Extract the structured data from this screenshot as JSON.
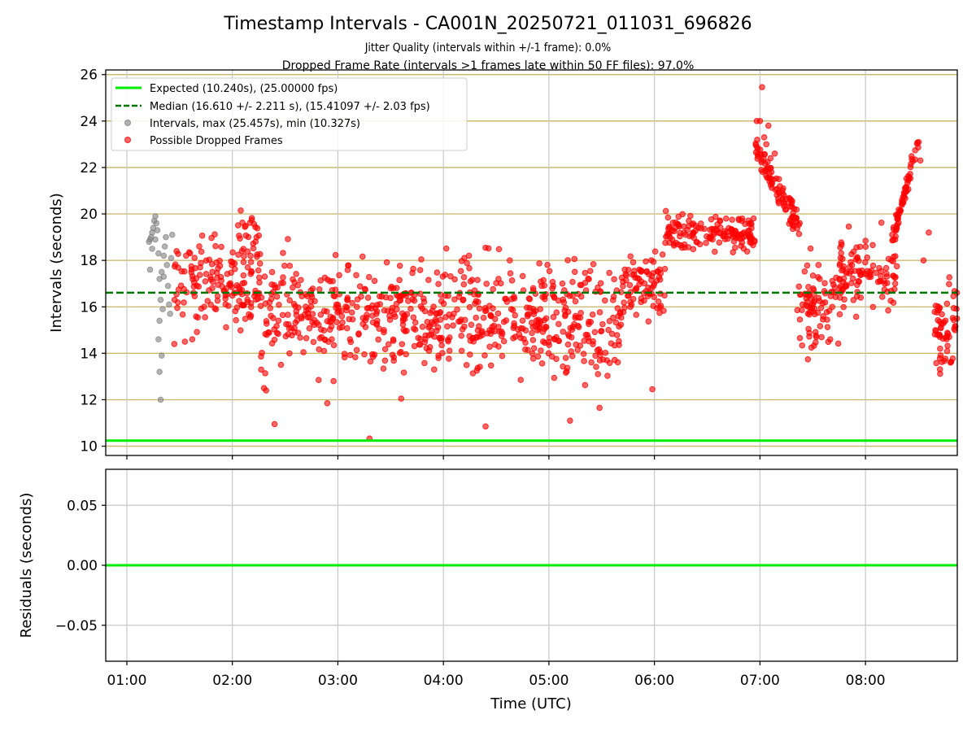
{
  "figure": {
    "title": "Timestamp Intervals - CA001N_20250721_011031_696826",
    "subtitle_1": "Jitter Quality (intervals within +/-1 frame): 0.0%",
    "subtitle_2": "Dropped Frame Rate (intervals >1 frames late within 50 FF files): 97.0%"
  },
  "colors": {
    "expected": "#00ee00",
    "median": "#007700",
    "normal_points": "#808080",
    "dropped_points": "#ff0000",
    "gold_grid": "#c8b464",
    "grey_grid": "#c8c8c8"
  },
  "chart_data": [
    {
      "type": "scatter",
      "ylabel": "Intervals (seconds)",
      "ylim": [
        9.6,
        26.2
      ],
      "yticks": [
        10,
        12,
        14,
        16,
        18,
        20,
        22,
        24,
        26
      ],
      "xlim_hours": [
        0.8,
        8.87
      ],
      "xticks": [
        "01:00",
        "02:00",
        "03:00",
        "04:00",
        "05:00",
        "06:00",
        "07:00",
        "08:00"
      ],
      "grid": true,
      "legend_position": "upper-left",
      "expected": {
        "label": "Expected (10.240s), (25.00000 fps)",
        "value": 10.24
      },
      "median": {
        "label": "Median (16.610 +/- 2.211 s), (15.41097 +/- 2.03 fps)",
        "value": 16.61
      },
      "intervals_label": "Intervals, max (25.457s), min (10.327s)",
      "dropped_label": "Possible Dropped Frames",
      "normal_points": [
        [
          1.21,
          18.8
        ],
        [
          1.22,
          18.9
        ],
        [
          1.23,
          19.0
        ],
        [
          1.24,
          19.2
        ],
        [
          1.25,
          19.4
        ],
        [
          1.26,
          19.7
        ],
        [
          1.27,
          19.9
        ],
        [
          1.28,
          19.6
        ],
        [
          1.29,
          19.3
        ],
        [
          1.24,
          18.5
        ],
        [
          1.22,
          17.6
        ],
        [
          1.27,
          18.9
        ],
        [
          1.3,
          18.3
        ],
        [
          1.31,
          17.2
        ],
        [
          1.32,
          16.3
        ],
        [
          1.31,
          15.4
        ],
        [
          1.3,
          14.6
        ],
        [
          1.31,
          13.2
        ],
        [
          1.32,
          12.0
        ],
        [
          1.33,
          13.9
        ],
        [
          1.34,
          15.9
        ],
        [
          1.35,
          17.3
        ],
        [
          1.36,
          18.6
        ],
        [
          1.37,
          19.0
        ],
        [
          1.38,
          17.8
        ],
        [
          1.39,
          16.9
        ],
        [
          1.4,
          16.1
        ],
        [
          1.41,
          15.7
        ],
        [
          1.42,
          18.1
        ],
        [
          1.43,
          19.1
        ],
        [
          1.35,
          18.2
        ],
        [
          1.33,
          17.5
        ]
      ],
      "dropped_segments": [
        {
          "t0": 1.45,
          "t1": 2.27,
          "center": 17.0,
          "spread": 2.0,
          "n": 150
        },
        {
          "t0": 2.05,
          "t1": 2.25,
          "center": 19.2,
          "spread": 1.0,
          "n": 25
        },
        {
          "t0": 2.27,
          "t1": 3.0,
          "center": 15.8,
          "spread": 2.6,
          "n": 140
        },
        {
          "t0": 3.0,
          "t1": 4.0,
          "center": 15.5,
          "spread": 2.4,
          "n": 200
        },
        {
          "t0": 4.0,
          "t1": 5.0,
          "center": 15.6,
          "spread": 2.6,
          "n": 200
        },
        {
          "t0": 5.0,
          "t1": 5.7,
          "center": 15.4,
          "spread": 2.6,
          "n": 140
        },
        {
          "t0": 5.7,
          "t1": 6.1,
          "center": 17.0,
          "spread": 1.8,
          "n": 80
        },
        {
          "t0": 6.1,
          "t1": 6.95,
          "center": 19.2,
          "spread": 0.9,
          "n": 150
        },
        {
          "t0": 7.35,
          "t1": 7.8,
          "center": 16.0,
          "spread": 1.9,
          "n": 90
        },
        {
          "t0": 7.75,
          "t1": 8.3,
          "center": 17.5,
          "spread": 1.7,
          "n": 100
        },
        {
          "t0": 8.65,
          "t1": 8.87,
          "center": 15.2,
          "spread": 1.9,
          "n": 60
        }
      ],
      "dropped_trends": [
        {
          "t0": 6.95,
          "t1": 7.38,
          "v0": 22.8,
          "v1": 19.5,
          "spread": 0.6,
          "n": 90
        },
        {
          "t0": 8.25,
          "t1": 8.52,
          "v0": 18.8,
          "v1": 23.4,
          "spread": 0.5,
          "n": 60
        }
      ],
      "dropped_extra_points": [
        [
          6.97,
          24.0
        ],
        [
          7.0,
          24.0
        ],
        [
          7.02,
          25.46
        ],
        [
          7.04,
          23.3
        ],
        [
          7.06,
          23.0
        ],
        [
          7.08,
          23.8
        ],
        [
          7.1,
          22.4
        ],
        [
          7.14,
          22.6
        ],
        [
          7.18,
          21.5
        ],
        [
          7.22,
          21.1
        ],
        [
          3.3,
          10.33
        ],
        [
          2.4,
          10.95
        ],
        [
          4.4,
          10.85
        ],
        [
          5.2,
          11.1
        ],
        [
          5.48,
          11.65
        ],
        [
          2.9,
          11.85
        ],
        [
          5.98,
          12.45
        ],
        [
          2.3,
          12.5
        ],
        [
          2.32,
          12.4
        ],
        [
          3.6,
          12.05
        ],
        [
          1.62,
          14.6
        ],
        [
          1.55,
          14.5
        ],
        [
          1.45,
          14.4
        ],
        [
          8.6,
          19.2
        ],
        [
          8.55,
          18.0
        ],
        [
          8.52,
          22.3
        ]
      ]
    },
    {
      "type": "line",
      "ylabel": "Residuals (seconds)",
      "xlabel": "Time (UTC)",
      "ylim": [
        -0.08,
        0.08
      ],
      "yticks": [
        "0.05",
        "0.00",
        "−0.05"
      ],
      "yticks_values": [
        0.05,
        0.0,
        -0.05
      ],
      "xlim_hours": [
        0.8,
        8.87
      ],
      "xticks": [
        "01:00",
        "02:00",
        "03:00",
        "04:00",
        "05:00",
        "06:00",
        "07:00",
        "08:00"
      ],
      "grid": true,
      "series": [
        {
          "values": [
            0.0,
            0.0
          ],
          "x_hours": [
            0.8,
            8.87
          ]
        }
      ]
    }
  ]
}
